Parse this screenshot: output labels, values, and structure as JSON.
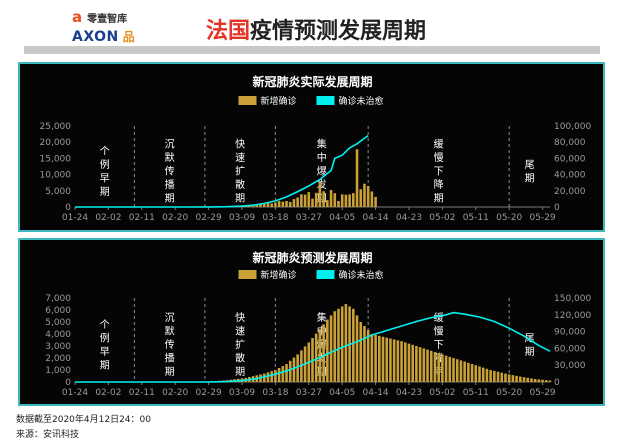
{
  "header": {
    "logo_top": "零壹智库",
    "logo_top_mark": "a",
    "logo_bottom": "AXON",
    "logo_bottom_mark": "品",
    "title_highlight": "法国",
    "title_rest": "疫情预测发展周期"
  },
  "colors": {
    "bar": "#c9a136",
    "line": "#00f0f0",
    "axis_text": "#9a9a9a",
    "panel_border": "#3fb9bf",
    "title_red": "#e33226"
  },
  "footer": {
    "line1": "数据截至2020年4月12日24：00",
    "line2": "来源：安讯科技"
  },
  "chart_data": [
    {
      "type": "bar+line",
      "title": "新冠肺炎实际发展周期",
      "legend": [
        "新增确诊",
        "确诊未治愈"
      ],
      "legend_position": "top-center",
      "x_ticks": [
        "01-24",
        "02-02",
        "02-11",
        "02-20",
        "02-29",
        "03-09",
        "03-18",
        "03-27",
        "04-05",
        "04-14",
        "04-23",
        "05-02",
        "05-11",
        "05-20",
        "05-29"
      ],
      "x_start": "01-24",
      "x_end": "05-31",
      "left_axis": {
        "name": "新增确诊",
        "range": [
          0,
          25000
        ],
        "ticks": [
          "0",
          "5,000",
          "10,000",
          "15,000",
          "20,000",
          "25,000"
        ]
      },
      "right_axis": {
        "name": "确诊未治愈",
        "range": [
          0,
          100000
        ],
        "ticks": [
          "0",
          "20,000",
          "40,000",
          "60,000",
          "80,000",
          "100,000"
        ]
      },
      "phases": [
        {
          "label": "个例早期",
          "start": "01-24",
          "end": "02-09"
        },
        {
          "label": "沉默传播期",
          "start": "02-09",
          "end": "02-28"
        },
        {
          "label": "快速扩散期",
          "start": "02-28",
          "end": "03-18"
        },
        {
          "label": "集中爆发期",
          "start": "03-18",
          "end": "04-12"
        },
        {
          "label": "缓慢下降期",
          "start": "04-12",
          "end": "05-20"
        },
        {
          "label": "尾期",
          "start": "05-20",
          "end": "05-31"
        }
      ],
      "series": [
        {
          "name": "新增确诊",
          "kind": "bar",
          "axis": "left",
          "start_date": "02-25",
          "values": [
            2,
            4,
            20,
            18,
            43,
            30,
            61,
            21,
            73,
            138,
            190,
            103,
            410,
            286,
            372,
            497,
            595,
            785,
            838,
            924,
            1210,
            1097,
            1404,
            1861,
            1617,
            1847,
            1559,
            2446,
            2931,
            3922,
            3809,
            4611,
            2599,
            4376,
            7578,
            4861,
            2116,
            5233,
            4267,
            1873,
            3912,
            3777,
            3881,
            4286,
            17827,
            5497,
            7200,
            6500,
            4799,
            3117
          ]
        },
        {
          "name": "确诊未治愈",
          "kind": "line",
          "axis": "right",
          "points": [
            [
              "01-24",
              0
            ],
            [
              "02-25",
              30
            ],
            [
              "03-01",
              120
            ],
            [
              "03-05",
              350
            ],
            [
              "03-09",
              1100
            ],
            [
              "03-12",
              2200
            ],
            [
              "03-15",
              4500
            ],
            [
              "03-18",
              7500
            ],
            [
              "03-21",
              12500
            ],
            [
              "03-24",
              19000
            ],
            [
              "03-27",
              26000
            ],
            [
              "03-30",
              34000
            ],
            [
              "04-02",
              45000
            ],
            [
              "04-03",
              60000
            ],
            [
              "04-05",
              64000
            ],
            [
              "04-07",
              73000
            ],
            [
              "04-09",
              78000
            ],
            [
              "04-11",
              85000
            ],
            [
              "04-12",
              88000
            ]
          ]
        }
      ]
    },
    {
      "type": "bar+line",
      "title": "新冠肺炎预测发展周期",
      "legend": [
        "新增确诊",
        "确诊未治愈"
      ],
      "legend_position": "top-center",
      "x_ticks": [
        "01-24",
        "02-02",
        "02-11",
        "02-20",
        "02-29",
        "03-09",
        "03-18",
        "03-27",
        "04-05",
        "04-14",
        "04-23",
        "05-02",
        "05-11",
        "05-20",
        "05-29"
      ],
      "x_start": "01-24",
      "x_end": "05-31",
      "left_axis": {
        "name": "新增确诊",
        "range": [
          0,
          7000
        ],
        "ticks": [
          "0",
          "1,000",
          "2,000",
          "3,000",
          "4,000",
          "5,000",
          "6,000",
          "7,000"
        ]
      },
      "right_axis": {
        "name": "确诊未治愈",
        "range": [
          0,
          150000
        ],
        "ticks": [
          "0",
          "30,000",
          "60,000",
          "90,000",
          "120,000",
          "150,000"
        ]
      },
      "phases": [
        {
          "label": "个例早期",
          "start": "01-24",
          "end": "02-09"
        },
        {
          "label": "沉默传播期",
          "start": "02-09",
          "end": "02-28"
        },
        {
          "label": "快速扩散期",
          "start": "02-28",
          "end": "03-18"
        },
        {
          "label": "集中爆发期",
          "start": "03-18",
          "end": "04-12"
        },
        {
          "label": "缓慢下降期",
          "start": "04-12",
          "end": "05-20"
        },
        {
          "label": "尾期",
          "start": "05-20",
          "end": "05-31"
        }
      ],
      "series": [
        {
          "name": "新增确诊",
          "kind": "bar",
          "axis": "left",
          "profile": {
            "knots": [
              [
                "03-01",
                50
              ],
              [
                "03-05",
                150
              ],
              [
                "03-10",
                350
              ],
              [
                "03-15",
                700
              ],
              [
                "03-18",
                1000
              ],
              [
                "03-21",
                1500
              ],
              [
                "03-24",
                2300
              ],
              [
                "03-27",
                3300
              ],
              [
                "03-30",
                4400
              ],
              [
                "04-01",
                5200
              ],
              [
                "04-03",
                5900
              ],
              [
                "04-05",
                6300
              ],
              [
                "04-06",
                6500
              ],
              [
                "04-08",
                6100
              ],
              [
                "04-10",
                5000
              ],
              [
                "04-13",
                4000
              ],
              [
                "04-17",
                3700
              ],
              [
                "04-21",
                3400
              ],
              [
                "04-25",
                3000
              ],
              [
                "04-29",
                2600
              ],
              [
                "05-03",
                2200
              ],
              [
                "05-07",
                1800
              ],
              [
                "05-11",
                1400
              ],
              [
                "05-15",
                1000
              ],
              [
                "05-19",
                700
              ],
              [
                "05-23",
                450
              ],
              [
                "05-27",
                250
              ],
              [
                "05-31",
                120
              ]
            ],
            "start": "03-01",
            "end": "05-31"
          }
        },
        {
          "name": "确诊未治愈",
          "kind": "line",
          "axis": "right",
          "points": [
            [
              "01-24",
              0
            ],
            [
              "02-25",
              50
            ],
            [
              "03-01",
              200
            ],
            [
              "03-05",
              800
            ],
            [
              "03-09",
              2500
            ],
            [
              "03-13",
              6000
            ],
            [
              "03-18",
              14000
            ],
            [
              "03-22",
              22000
            ],
            [
              "03-27",
              35000
            ],
            [
              "04-01",
              50000
            ],
            [
              "04-05",
              62000
            ],
            [
              "04-09",
              72000
            ],
            [
              "04-13",
              84000
            ],
            [
              "04-17",
              92000
            ],
            [
              "04-21",
              100000
            ],
            [
              "04-25",
              108000
            ],
            [
              "04-29",
              115000
            ],
            [
              "05-03",
              120000
            ],
            [
              "05-05",
              124000
            ],
            [
              "05-08",
              121000
            ],
            [
              "05-12",
              116000
            ],
            [
              "05-16",
              108000
            ],
            [
              "05-20",
              96000
            ],
            [
              "05-24",
              82000
            ],
            [
              "05-28",
              65000
            ],
            [
              "05-31",
              55000
            ]
          ]
        }
      ]
    }
  ]
}
